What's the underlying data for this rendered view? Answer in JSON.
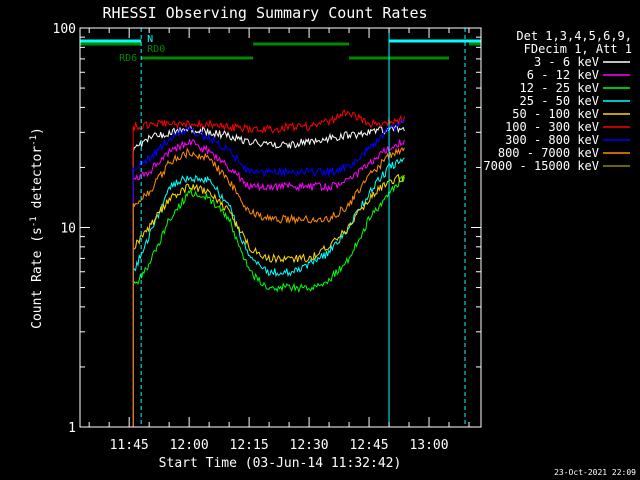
{
  "chart_data": {
    "type": "line",
    "title": "RHESSI Observing Summary Count Rates",
    "xlabel": "Start Time (03-Jun-14 11:32:42)",
    "ylabel": "Count Rate (s",
    "ylabel_sup": "-1",
    "ylabel_tail": " detector",
    "ylabel_close": ")",
    "y_scale": "log",
    "ylim": [
      1,
      100
    ],
    "xlim": [
      "11:32:42",
      "13:13:00"
    ],
    "x_ticks": [
      "11:45",
      "12:00",
      "12:15",
      "12:30",
      "12:45",
      "13:00"
    ],
    "y_ticks": [
      "1",
      "10",
      "100"
    ],
    "legend_header": [
      "Det 1,3,4,5,6,9,",
      "FDecim 1, Att 1"
    ],
    "legend_placement": "right",
    "series": [
      {
        "name": "3 - 6 keV",
        "color": "#ffffff",
        "points": [
          [
            "11:46",
            25
          ],
          [
            "11:50",
            28
          ],
          [
            "11:55",
            30
          ],
          [
            "12:00",
            31
          ],
          [
            "12:05",
            30
          ],
          [
            "12:10",
            29
          ],
          [
            "12:15",
            27
          ],
          [
            "12:20",
            26
          ],
          [
            "12:25",
            26
          ],
          [
            "12:30",
            27
          ],
          [
            "12:35",
            28
          ],
          [
            "12:40",
            29
          ],
          [
            "12:45",
            30
          ],
          [
            "12:50",
            31
          ],
          [
            "12:54",
            31
          ]
        ]
      },
      {
        "name": "6 - 12 keV",
        "color": "#ff00ff",
        "points": [
          [
            "11:46",
            17
          ],
          [
            "11:50",
            19
          ],
          [
            "11:55",
            24
          ],
          [
            "12:00",
            27
          ],
          [
            "12:05",
            24
          ],
          [
            "12:10",
            20
          ],
          [
            "12:15",
            16
          ],
          [
            "12:20",
            16
          ],
          [
            "12:25",
            16
          ],
          [
            "12:30",
            16
          ],
          [
            "12:35",
            16
          ],
          [
            "12:40",
            17
          ],
          [
            "12:45",
            21
          ],
          [
            "12:50",
            25
          ],
          [
            "12:54",
            27
          ]
        ]
      },
      {
        "name": "12 - 25 keV",
        "color": "#00ff00",
        "points": [
          [
            "11:46",
            5
          ],
          [
            "11:50",
            6.5
          ],
          [
            "11:55",
            11
          ],
          [
            "12:00",
            15
          ],
          [
            "12:05",
            14
          ],
          [
            "12:10",
            11
          ],
          [
            "12:15",
            6
          ],
          [
            "12:20",
            5
          ],
          [
            "12:25",
            5
          ],
          [
            "12:30",
            5
          ],
          [
            "12:35",
            5.5
          ],
          [
            "12:40",
            7
          ],
          [
            "12:45",
            11
          ],
          [
            "12:50",
            15
          ],
          [
            "12:54",
            18
          ]
        ]
      },
      {
        "name": "25 - 50 keV",
        "color": "#00ffff",
        "points": [
          [
            "11:46",
            6
          ],
          [
            "11:50",
            9
          ],
          [
            "11:55",
            16
          ],
          [
            "12:00",
            18
          ],
          [
            "12:05",
            17
          ],
          [
            "12:10",
            13
          ],
          [
            "12:15",
            7
          ],
          [
            "12:20",
            6
          ],
          [
            "12:25",
            6
          ],
          [
            "12:30",
            6.5
          ],
          [
            "12:35",
            7.5
          ],
          [
            "12:40",
            10
          ],
          [
            "12:45",
            15
          ],
          [
            "12:50",
            20
          ],
          [
            "12:54",
            22
          ]
        ]
      },
      {
        "name": "50 - 100 keV",
        "color": "#ffd700",
        "points": [
          [
            "11:46",
            8
          ],
          [
            "11:50",
            10
          ],
          [
            "11:55",
            14
          ],
          [
            "12:00",
            16
          ],
          [
            "12:05",
            15
          ],
          [
            "12:10",
            12
          ],
          [
            "12:15",
            8
          ],
          [
            "12:20",
            7
          ],
          [
            "12:25",
            7
          ],
          [
            "12:30",
            7
          ],
          [
            "12:35",
            8
          ],
          [
            "12:40",
            10
          ],
          [
            "12:45",
            14
          ],
          [
            "12:50",
            17
          ],
          [
            "12:54",
            18
          ]
        ]
      },
      {
        "name": "100 - 300 keV",
        "color": "#ff0000",
        "points": [
          [
            "11:46",
            32
          ],
          [
            "11:50",
            33
          ],
          [
            "11:55",
            33
          ],
          [
            "12:00",
            33
          ],
          [
            "12:05",
            33
          ],
          [
            "12:10",
            32
          ],
          [
            "12:15",
            31
          ],
          [
            "12:20",
            31
          ],
          [
            "12:25",
            32
          ],
          [
            "12:30",
            32
          ],
          [
            "12:35",
            34
          ],
          [
            "12:40",
            38
          ],
          [
            "12:45",
            33
          ],
          [
            "12:50",
            34
          ],
          [
            "12:54",
            35
          ]
        ]
      },
      {
        "name": "300 - 800 keV",
        "color": "#0000ff",
        "points": [
          [
            "11:46",
            20
          ],
          [
            "11:50",
            22
          ],
          [
            "11:55",
            28
          ],
          [
            "12:00",
            31
          ],
          [
            "12:05",
            28
          ],
          [
            "12:10",
            24
          ],
          [
            "12:15",
            19
          ],
          [
            "12:20",
            19
          ],
          [
            "12:25",
            19
          ],
          [
            "12:30",
            19
          ],
          [
            "12:35",
            19
          ],
          [
            "12:40",
            20
          ],
          [
            "12:45",
            25
          ],
          [
            "12:50",
            31
          ],
          [
            "12:54",
            34
          ]
        ]
      },
      {
        "name": "800 - 7000 keV",
        "color": "#ff8c00",
        "points": [
          [
            "11:46",
            13
          ],
          [
            "11:50",
            15
          ],
          [
            "11:55",
            21
          ],
          [
            "12:00",
            24
          ],
          [
            "12:05",
            22
          ],
          [
            "12:10",
            17
          ],
          [
            "12:15",
            12
          ],
          [
            "12:20",
            11
          ],
          [
            "12:25",
            11
          ],
          [
            "12:30",
            11
          ],
          [
            "12:35",
            11
          ],
          [
            "12:40",
            13
          ],
          [
            "12:45",
            18
          ],
          [
            "12:50",
            23
          ],
          [
            "12:54",
            25
          ]
        ]
      },
      {
        "name": "7000 - 15000 keV",
        "color": "#8b8b00",
        "points": []
      }
    ],
    "status_bars": [
      {
        "label": "N",
        "color": "#00ffff",
        "segments": [
          [
            "11:32:42",
            "11:48"
          ],
          [
            "12:50",
            "13:13"
          ]
        ]
      },
      {
        "label": "RD0",
        "color": "#008800",
        "segments": [
          [
            "11:32:42",
            "11:48"
          ],
          [
            "12:16",
            "12:40"
          ],
          [
            "13:10",
            "13:13"
          ]
        ]
      },
      {
        "label": "RD6",
        "color": "#008800",
        "segments": [
          [
            "11:48",
            "12:16"
          ],
          [
            "12:40",
            "13:05"
          ]
        ]
      }
    ],
    "timestamp": "23-Oct-2021 22:09"
  }
}
